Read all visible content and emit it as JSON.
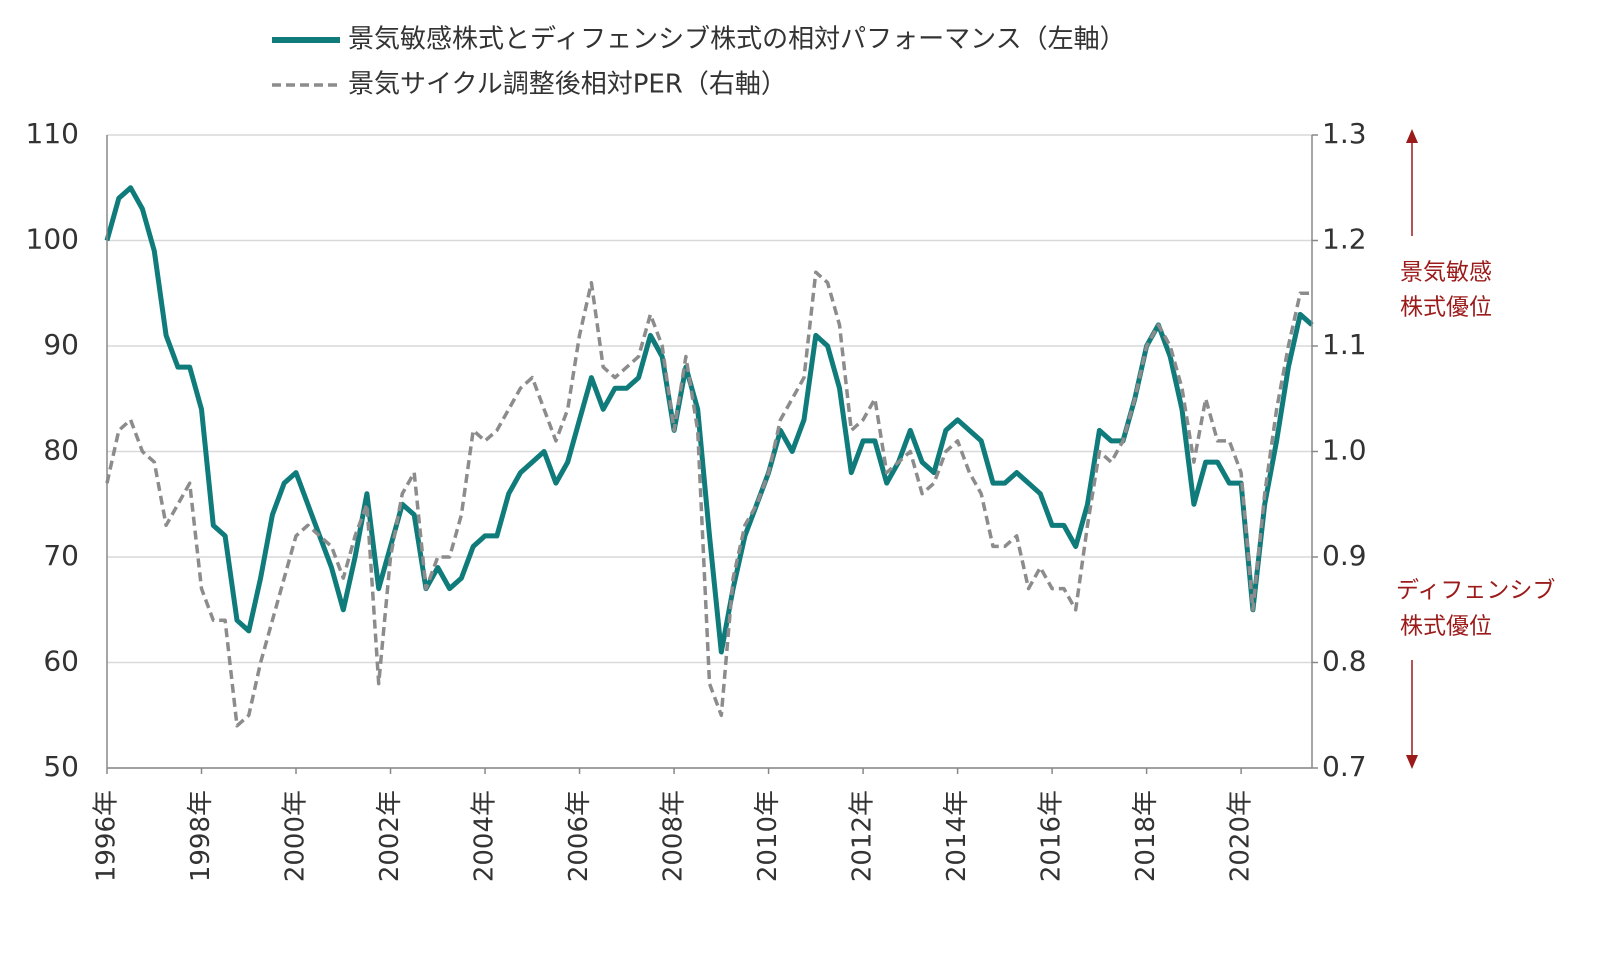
{
  "chart_data": {
    "type": "line",
    "x": [
      1996,
      1996.25,
      1996.5,
      1996.75,
      1997,
      1997.25,
      1997.5,
      1997.75,
      1998,
      1998.25,
      1998.5,
      1998.75,
      1999,
      1999.25,
      1999.5,
      1999.75,
      2000,
      2000.25,
      2000.5,
      2000.75,
      2001,
      2001.25,
      2001.5,
      2001.75,
      2002,
      2002.25,
      2002.5,
      2002.75,
      2003,
      2003.25,
      2003.5,
      2003.75,
      2004,
      2004.25,
      2004.5,
      2004.75,
      2005,
      2005.25,
      2005.5,
      2005.75,
      2006,
      2006.25,
      2006.5,
      2006.75,
      2007,
      2007.25,
      2007.5,
      2007.75,
      2008,
      2008.25,
      2008.5,
      2008.75,
      2009,
      2009.25,
      2009.5,
      2009.75,
      2010,
      2010.25,
      2010.5,
      2010.75,
      2011,
      2011.25,
      2011.5,
      2011.75,
      2012,
      2012.25,
      2012.5,
      2012.75,
      2013,
      2013.25,
      2013.5,
      2013.75,
      2014,
      2014.25,
      2014.5,
      2014.75,
      2015,
      2015.25,
      2015.5,
      2015.75,
      2016,
      2016.25,
      2016.5,
      2016.75,
      2017,
      2017.25,
      2017.5,
      2017.75,
      2018,
      2018.25,
      2018.5,
      2018.75,
      2019,
      2019.25,
      2019.5,
      2019.75,
      2020,
      2020.25,
      2020.5,
      2020.75,
      2021,
      2021.25,
      2021.5
    ],
    "series": [
      {
        "name": "景気敏感株式とディフェンシブ株式の相対パフォーマンス（左軸）",
        "color": "#0f7b7b",
        "style": "solid",
        "axis": "y",
        "values": [
          100,
          104,
          105,
          103,
          99,
          91,
          88,
          88,
          84,
          73,
          72,
          64,
          63,
          68,
          74,
          77,
          78,
          75,
          72,
          69,
          65,
          70,
          76,
          67,
          71,
          75,
          74,
          67,
          69,
          67,
          68,
          71,
          72,
          72,
          76,
          78,
          79,
          80,
          77,
          79,
          83,
          87,
          84,
          86,
          86,
          87,
          91,
          89,
          82,
          88,
          84,
          72,
          61,
          67,
          72,
          75,
          78,
          82,
          80,
          83,
          91,
          90,
          86,
          78,
          81,
          81,
          77,
          79,
          82,
          79,
          78,
          82,
          83,
          82,
          81,
          77,
          77,
          78,
          77,
          76,
          73,
          73,
          71,
          75,
          82,
          81,
          81,
          85,
          90,
          92,
          89,
          84,
          75,
          79,
          79,
          77,
          77,
          65,
          75,
          81,
          88,
          93,
          92
        ]
      },
      {
        "name": "景気サイクル調整後相対PER（右軸）",
        "color": "#8c8c8c",
        "style": "dashed",
        "axis": "y2",
        "values": [
          0.97,
          1.02,
          1.03,
          1.0,
          0.99,
          0.93,
          0.95,
          0.97,
          0.87,
          0.84,
          0.84,
          0.74,
          0.75,
          0.8,
          0.84,
          0.88,
          0.92,
          0.93,
          0.92,
          0.91,
          0.88,
          0.92,
          0.95,
          0.78,
          0.9,
          0.96,
          0.98,
          0.87,
          0.9,
          0.9,
          0.94,
          1.02,
          1.01,
          1.02,
          1.04,
          1.06,
          1.07,
          1.04,
          1.01,
          1.04,
          1.11,
          1.16,
          1.08,
          1.07,
          1.08,
          1.09,
          1.13,
          1.1,
          1.02,
          1.09,
          1.02,
          0.78,
          0.75,
          0.88,
          0.93,
          0.95,
          0.98,
          1.03,
          1.05,
          1.07,
          1.17,
          1.16,
          1.12,
          1.02,
          1.03,
          1.05,
          0.98,
          0.99,
          1.0,
          0.96,
          0.97,
          1.0,
          1.01,
          0.98,
          0.96,
          0.91,
          0.91,
          0.92,
          0.87,
          0.89,
          0.87,
          0.87,
          0.85,
          0.93,
          1.0,
          0.99,
          1.01,
          1.05,
          1.1,
          1.12,
          1.1,
          1.06,
          0.99,
          1.05,
          1.01,
          1.01,
          0.98,
          0.85,
          0.96,
          1.04,
          1.1,
          1.15,
          1.15
        ]
      }
    ],
    "xlim": [
      1996,
      2021.5
    ],
    "xticks": [
      {
        "value": 1996,
        "label": "1996年"
      },
      {
        "value": 1998,
        "label": "1998年"
      },
      {
        "value": 2000,
        "label": "2000年"
      },
      {
        "value": 2002,
        "label": "2002年"
      },
      {
        "value": 2004,
        "label": "2004年"
      },
      {
        "value": 2006,
        "label": "2006年"
      },
      {
        "value": 2008,
        "label": "2008年"
      },
      {
        "value": 2010,
        "label": "2010年"
      },
      {
        "value": 2012,
        "label": "2012年"
      },
      {
        "value": 2014,
        "label": "2014年"
      },
      {
        "value": 2016,
        "label": "2016年"
      },
      {
        "value": 2018,
        "label": "2018年"
      },
      {
        "value": 2020,
        "label": "2020年"
      }
    ],
    "ylim": [
      50,
      110
    ],
    "yticks": [
      50,
      60,
      70,
      80,
      90,
      100,
      110
    ],
    "y2lim": [
      0.7,
      1.3
    ],
    "y2ticks": [
      0.7,
      0.8,
      0.9,
      {
        "value": 1,
        "label": "1.0"
      },
      1.1,
      1.2,
      1.3
    ],
    "grid": true,
    "legend": "top",
    "annotations": [
      "景気敏感",
      "株式優位",
      "ディフェンシブ",
      "株式優位"
    ]
  }
}
